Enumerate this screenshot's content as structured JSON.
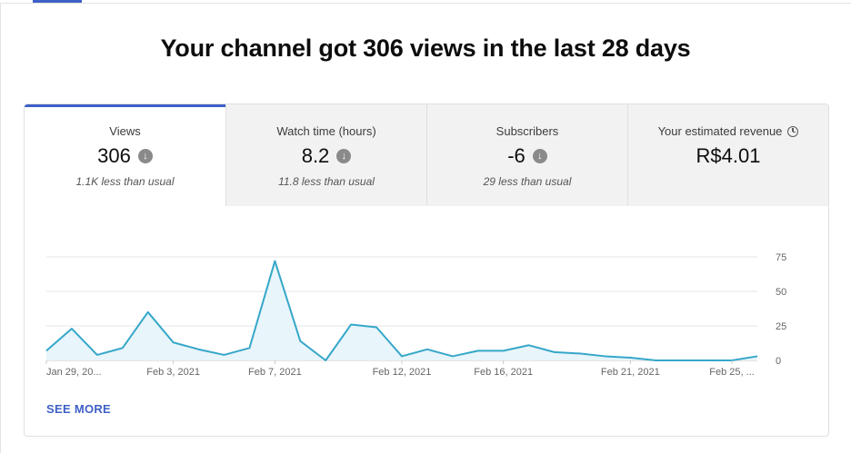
{
  "headline": "Your channel got 306 views in the last 28 days",
  "metrics": [
    {
      "title": "Views",
      "value": "306",
      "sub": "1.1K less than usual",
      "trend": "down"
    },
    {
      "title": "Watch time (hours)",
      "value": "8.2",
      "sub": "11.8 less than usual",
      "trend": "down"
    },
    {
      "title": "Subscribers",
      "value": "-6",
      "sub": "29 less than usual",
      "trend": "down"
    },
    {
      "title": "Your estimated revenue",
      "value": "R$4.01",
      "sub": "",
      "icon": "clock-icon"
    }
  ],
  "see_more": "SEE MORE",
  "colors": {
    "accent": "#3e5fc7",
    "line": "#35a7c9",
    "fill": "#e8f5fa"
  },
  "chart_data": {
    "type": "area",
    "x": [
      "Jan 29",
      "Jan 30",
      "Jan 31",
      "Feb 1",
      "Feb 2",
      "Feb 3",
      "Feb 4",
      "Feb 5",
      "Feb 6",
      "Feb 7",
      "Feb 8",
      "Feb 9",
      "Feb 10",
      "Feb 11",
      "Feb 12",
      "Feb 13",
      "Feb 14",
      "Feb 15",
      "Feb 16",
      "Feb 17",
      "Feb 18",
      "Feb 19",
      "Feb 20",
      "Feb 21",
      "Feb 22",
      "Feb 23",
      "Feb 24",
      "Feb 25",
      "Feb 26"
    ],
    "values": [
      7,
      23,
      4,
      9,
      35,
      13,
      8,
      4,
      9,
      72,
      14,
      0,
      26,
      24,
      3,
      8,
      3,
      7,
      7,
      11,
      6,
      5,
      3,
      2,
      0,
      0,
      0,
      0,
      3
    ],
    "xticks": [
      "Jan 29, 20...",
      "Feb 3, 2021",
      "Feb 7, 2021",
      "Feb 12, 2021",
      "Feb 16, 2021",
      "Feb 21, 2021",
      "Feb 25, ..."
    ],
    "xtick_dates": [
      "Jan 29",
      "Feb 3",
      "Feb 7",
      "Feb 12",
      "Feb 16",
      "Feb 21",
      "Feb 25"
    ],
    "yticks": [
      "75",
      "50",
      "25",
      "0"
    ],
    "ylim": [
      0,
      75
    ],
    "grid": true
  }
}
